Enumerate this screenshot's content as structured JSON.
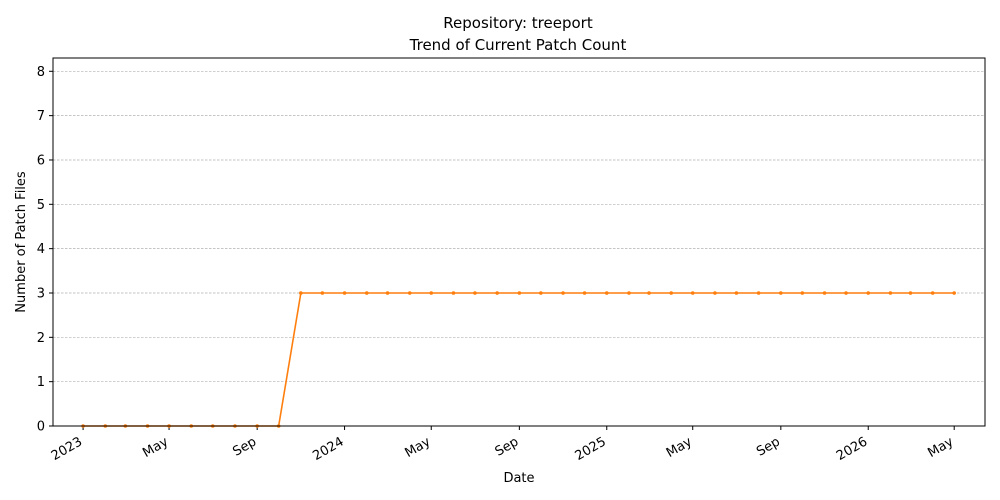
{
  "chart_data": {
    "type": "line",
    "title": "Repository: treeport",
    "subtitle": "Trend of Current Patch Count",
    "xlabel": "Date",
    "ylabel": "Number of Patch Files",
    "xlim": [
      "2022-11-20",
      "2026-06-13"
    ],
    "ylim": [
      0,
      8.3
    ],
    "yticks": [
      0,
      1,
      2,
      3,
      4,
      5,
      6,
      7,
      8
    ],
    "xticks": [
      {
        "date": "2023-01-01",
        "label": "2023"
      },
      {
        "date": "2023-05-01",
        "label": "May"
      },
      {
        "date": "2023-09-01",
        "label": "Sep"
      },
      {
        "date": "2024-01-01",
        "label": "2024"
      },
      {
        "date": "2024-05-01",
        "label": "May"
      },
      {
        "date": "2024-09-01",
        "label": "Sep"
      },
      {
        "date": "2025-01-01",
        "label": "2025"
      },
      {
        "date": "2025-05-01",
        "label": "May"
      },
      {
        "date": "2025-09-01",
        "label": "Sep"
      },
      {
        "date": "2026-01-01",
        "label": "2026"
      },
      {
        "date": "2026-05-01",
        "label": "May"
      }
    ],
    "grid": "y",
    "line_color": "#ff7f0e",
    "series": [
      {
        "x": [
          "2023-01-01",
          "2023-02-01",
          "2023-03-01",
          "2023-04-01",
          "2023-05-01",
          "2023-06-01",
          "2023-07-01",
          "2023-08-01",
          "2023-09-01",
          "2023-10-01",
          "2023-11-01",
          "2023-12-01",
          "2024-01-01",
          "2024-02-01",
          "2024-03-01",
          "2024-04-01",
          "2024-05-01",
          "2024-06-01",
          "2024-07-01",
          "2024-08-01",
          "2024-09-01",
          "2024-10-01",
          "2024-11-01",
          "2024-12-01",
          "2025-01-01",
          "2025-02-01",
          "2025-03-01",
          "2025-04-01",
          "2025-05-01",
          "2025-06-01",
          "2025-07-01",
          "2025-08-01",
          "2025-09-01",
          "2025-10-01",
          "2025-11-01",
          "2025-12-01",
          "2026-01-01",
          "2026-02-01",
          "2026-03-01",
          "2026-04-01",
          "2026-05-01"
        ],
        "values": [
          0,
          0,
          0,
          0,
          0,
          0,
          0,
          0,
          0,
          0,
          3,
          3,
          3,
          3,
          3,
          3,
          3,
          3,
          3,
          3,
          3,
          3,
          3,
          3,
          3,
          3,
          3,
          3,
          3,
          3,
          3,
          3,
          3,
          3,
          3,
          3,
          3,
          3,
          3,
          3,
          3
        ]
      }
    ]
  }
}
